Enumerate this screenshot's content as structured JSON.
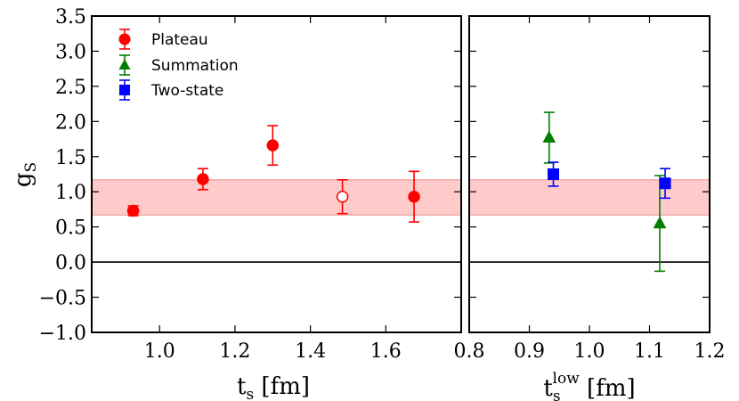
{
  "chart_data": [
    {
      "type": "scatter",
      "panel": "left",
      "xlabel_main": "t",
      "xlabel_sub": "s",
      "xlabel_unit": " [fm]",
      "ylabel_main": "g",
      "ylabel_sub": "S",
      "xlim": [
        0.82,
        1.8
      ],
      "ylim": [
        -1.0,
        3.5
      ],
      "xticks": [
        1.0,
        1.2,
        1.4,
        1.6
      ],
      "xtick_labels": [
        "1.0",
        "1.2",
        "1.4",
        "1.6"
      ],
      "yticks": [
        -1.0,
        -0.5,
        0.0,
        0.5,
        1.0,
        1.5,
        2.0,
        2.5,
        3.0,
        3.5
      ],
      "ytick_labels": [
        "−1.0",
        "−0.5",
        "0.0",
        "0.5",
        "1.0",
        "1.5",
        "2.0",
        "2.5",
        "3.0",
        "3.5"
      ],
      "band": {
        "low": 0.67,
        "high": 1.17,
        "color": "#ffb3b3"
      },
      "zero_line": 0.0,
      "series": [
        {
          "name": "Plateau",
          "color": "#ff0000",
          "marker": "circle",
          "points": [
            {
              "x": 0.93,
              "y": 0.73,
              "err_low": 0.07,
              "err_high": 0.07,
              "filled": true
            },
            {
              "x": 1.115,
              "y": 1.18,
              "err_low": 0.15,
              "err_high": 0.15,
              "filled": true
            },
            {
              "x": 1.3,
              "y": 1.66,
              "err_low": 0.28,
              "err_high": 0.28,
              "filled": true
            },
            {
              "x": 1.485,
              "y": 0.93,
              "err_low": 0.24,
              "err_high": 0.24,
              "filled": false
            },
            {
              "x": 1.675,
              "y": 0.93,
              "err_low": 0.36,
              "err_high": 0.36,
              "filled": true
            }
          ]
        }
      ]
    },
    {
      "type": "scatter",
      "panel": "right",
      "xlabel_main": "t",
      "xlabel_sub": "s",
      "xlabel_sup": "low",
      "xlabel_unit": " [fm]",
      "xlim": [
        0.8,
        1.2
      ],
      "ylim": [
        -1.0,
        3.5
      ],
      "xticks": [
        0.8,
        0.9,
        1.0,
        1.1,
        1.2
      ],
      "xtick_labels": [
        "0.8",
        "0.9",
        "1.0",
        "1.1",
        "1.2"
      ],
      "band": {
        "low": 0.67,
        "high": 1.17,
        "color": "#ffb3b3"
      },
      "zero_line": 0.0,
      "series": [
        {
          "name": "Summation",
          "color": "#007f00",
          "marker": "triangle",
          "points": [
            {
              "x": 0.933,
              "y": 1.77,
              "err_low": 0.36,
              "err_high": 0.36,
              "filled": true
            },
            {
              "x": 1.117,
              "y": 0.55,
              "err_low": 0.68,
              "err_high": 0.68,
              "filled": true
            }
          ]
        },
        {
          "name": "Two-state",
          "color": "#0000ff",
          "marker": "square",
          "points": [
            {
              "x": 0.94,
              "y": 1.25,
              "err_low": 0.17,
              "err_high": 0.17,
              "filled": true
            },
            {
              "x": 1.126,
              "y": 1.12,
              "err_low": 0.21,
              "err_high": 0.21,
              "filled": true
            }
          ]
        }
      ]
    }
  ],
  "legend": {
    "placement": "top-left",
    "entries": [
      {
        "label": "Plateau",
        "color": "#ff0000",
        "marker": "circle"
      },
      {
        "label": "Summation",
        "color": "#007f00",
        "marker": "triangle"
      },
      {
        "label": "Two-state",
        "color": "#0000ff",
        "marker": "square"
      }
    ]
  }
}
